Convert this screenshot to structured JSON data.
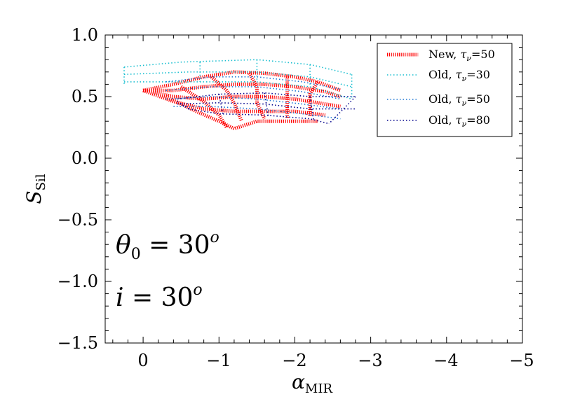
{
  "chart_data": {
    "type": "line",
    "title": "",
    "xlabel": "α_MIR",
    "xlabel_parts": {
      "symbol": "α",
      "sub": "MIR"
    },
    "ylabel": "S_Sil",
    "ylabel_parts": {
      "symbol": "S",
      "sub": "Sil"
    },
    "xlim": [
      0.5,
      -5
    ],
    "ylim": [
      -1.5,
      1.0
    ],
    "xticks": [
      0,
      -1,
      -2,
      -3,
      -4,
      -5
    ],
    "xtick_labels": [
      "0",
      "−1",
      "−2",
      "−3",
      "−4",
      "−5"
    ],
    "yticks": [
      1.0,
      0.5,
      0.0,
      -0.5,
      -1.0,
      -1.5
    ],
    "ytick_labels": [
      "1.0",
      "0.5",
      "0.0",
      "−0.5",
      "−1.0",
      "−1.5"
    ],
    "grid": false,
    "legend_position": "top-right",
    "annotations": [
      {
        "text": "θ₀ = 30ᵒ",
        "lhs": "θ",
        "sub": "0",
        "rhs": " = 30",
        "sup": "o",
        "x": -0.3,
        "y": -0.72
      },
      {
        "text": "i = 30ᵒ",
        "lhs": "i",
        "sub": "",
        "rhs": " = 30",
        "sup": "o",
        "x": -0.3,
        "y": -1.12
      }
    ],
    "series": [
      {
        "name": "New, τν=50",
        "label_prefix": "New, ",
        "label_symbol": "τ",
        "label_sub": "ν",
        "label_suffix": "=50",
        "color": "#ff0000",
        "style": "dotted-thick",
        "curves": [
          [
            [
              0.0,
              0.55
            ],
            [
              -0.4,
              0.6
            ],
            [
              -0.8,
              0.66
            ],
            [
              -1.2,
              0.7
            ],
            [
              -1.6,
              0.69
            ],
            [
              -2.0,
              0.66
            ],
            [
              -2.3,
              0.62
            ],
            [
              -2.6,
              0.55
            ]
          ],
          [
            [
              0.0,
              0.55
            ],
            [
              -0.4,
              0.55
            ],
            [
              -0.8,
              0.58
            ],
            [
              -1.2,
              0.6
            ],
            [
              -1.6,
              0.6
            ],
            [
              -2.0,
              0.58
            ],
            [
              -2.4,
              0.54
            ],
            [
              -2.6,
              0.5
            ]
          ],
          [
            [
              0.0,
              0.55
            ],
            [
              -0.4,
              0.5
            ],
            [
              -0.8,
              0.48
            ],
            [
              -1.2,
              0.5
            ],
            [
              -1.6,
              0.5
            ],
            [
              -2.0,
              0.48
            ],
            [
              -2.4,
              0.44
            ],
            [
              -2.6,
              0.42
            ]
          ],
          [
            [
              0.0,
              0.55
            ],
            [
              -0.4,
              0.46
            ],
            [
              -0.8,
              0.4
            ],
            [
              -1.2,
              0.38
            ],
            [
              -1.6,
              0.38
            ],
            [
              -2.0,
              0.38
            ],
            [
              -2.4,
              0.35
            ]
          ],
          [
            [
              -0.3,
              0.5
            ],
            [
              -0.7,
              0.38
            ],
            [
              -1.0,
              0.3
            ],
            [
              -1.2,
              0.24
            ],
            [
              -1.5,
              0.3
            ],
            [
              -1.9,
              0.3
            ],
            [
              -2.3,
              0.3
            ]
          ],
          [
            [
              -0.5,
              0.58
            ],
            [
              -0.8,
              0.46
            ],
            [
              -1.0,
              0.35
            ],
            [
              -1.1,
              0.25
            ]
          ],
          [
            [
              -0.9,
              0.66
            ],
            [
              -1.1,
              0.55
            ],
            [
              -1.2,
              0.45
            ],
            [
              -1.3,
              0.3
            ]
          ],
          [
            [
              -1.4,
              0.69
            ],
            [
              -1.5,
              0.58
            ],
            [
              -1.5,
              0.45
            ],
            [
              -1.6,
              0.32
            ]
          ],
          [
            [
              -1.9,
              0.67
            ],
            [
              -1.9,
              0.57
            ],
            [
              -1.9,
              0.45
            ],
            [
              -1.9,
              0.32
            ]
          ],
          [
            [
              -2.3,
              0.62
            ],
            [
              -2.2,
              0.52
            ],
            [
              -2.2,
              0.42
            ],
            [
              -2.2,
              0.34
            ]
          ]
        ]
      },
      {
        "name": "Old, τν=30",
        "label_prefix": "Old, ",
        "label_symbol": "τ",
        "label_sub": "ν",
        "label_suffix": "=30",
        "color": "#17becf",
        "style": "dotted",
        "curves": [
          [
            [
              0.25,
              0.74
            ],
            [
              -0.5,
              0.78
            ],
            [
              -1.5,
              0.8
            ],
            [
              -2.2,
              0.76
            ],
            [
              -2.75,
              0.68
            ]
          ],
          [
            [
              0.25,
              0.68
            ],
            [
              -0.6,
              0.7
            ],
            [
              -1.5,
              0.7
            ],
            [
              -2.2,
              0.66
            ],
            [
              -2.75,
              0.58
            ]
          ],
          [
            [
              0.25,
              0.62
            ],
            [
              -0.6,
              0.62
            ],
            [
              -1.5,
              0.62
            ],
            [
              -2.2,
              0.58
            ],
            [
              -2.75,
              0.48
            ]
          ],
          [
            [
              0.25,
              0.74
            ],
            [
              0.25,
              0.6
            ]
          ],
          [
            [
              -0.75,
              0.78
            ],
            [
              -0.75,
              0.62
            ]
          ],
          [
            [
              -1.5,
              0.8
            ],
            [
              -1.5,
              0.62
            ]
          ],
          [
            [
              -2.2,
              0.76
            ],
            [
              -2.2,
              0.58
            ]
          ],
          [
            [
              -2.75,
              0.68
            ],
            [
              -2.75,
              0.48
            ]
          ]
        ]
      },
      {
        "name": "Old, τν=50",
        "label_prefix": "Old, ",
        "label_symbol": "τ",
        "label_sub": "ν",
        "label_suffix": "=50",
        "color": "#1f77d4",
        "style": "dotted",
        "curves": [
          [
            [
              -0.3,
              0.62
            ],
            [
              -0.9,
              0.66
            ],
            [
              -1.5,
              0.66
            ],
            [
              -2.1,
              0.62
            ],
            [
              -2.6,
              0.56
            ]
          ],
          [
            [
              -0.3,
              0.55
            ],
            [
              -0.9,
              0.58
            ],
            [
              -1.5,
              0.58
            ],
            [
              -2.1,
              0.54
            ],
            [
              -2.6,
              0.48
            ]
          ],
          [
            [
              -0.3,
              0.48
            ],
            [
              -0.9,
              0.5
            ],
            [
              -1.5,
              0.48
            ],
            [
              -2.1,
              0.44
            ],
            [
              -2.6,
              0.4
            ]
          ],
          [
            [
              -0.4,
              0.42
            ],
            [
              -0.9,
              0.42
            ],
            [
              -1.5,
              0.4
            ],
            [
              -2.1,
              0.36
            ],
            [
              -2.6,
              0.32
            ]
          ]
        ]
      },
      {
        "name": "Old, τν=80",
        "label_prefix": "Old, ",
        "label_symbol": "τ",
        "label_sub": "ν",
        "label_suffix": "=80",
        "color": "#00008b",
        "style": "dotted",
        "curves": [
          [
            [
              -0.45,
              0.48
            ],
            [
              -1.0,
              0.52
            ],
            [
              -1.6,
              0.53
            ],
            [
              -2.2,
              0.5
            ],
            [
              -2.8,
              0.5
            ]
          ],
          [
            [
              -0.45,
              0.44
            ],
            [
              -1.0,
              0.45
            ],
            [
              -1.6,
              0.44
            ],
            [
              -2.2,
              0.4
            ],
            [
              -2.8,
              0.4
            ]
          ],
          [
            [
              -0.6,
              0.4
            ],
            [
              -1.0,
              0.36
            ],
            [
              -1.6,
              0.35
            ],
            [
              -2.2,
              0.32
            ],
            [
              -2.45,
              0.28
            ]
          ],
          [
            [
              -0.45,
              0.46
            ],
            [
              -0.6,
              0.4
            ]
          ],
          [
            [
              -1.0,
              0.52
            ],
            [
              -1.05,
              0.36
            ]
          ],
          [
            [
              -1.6,
              0.53
            ],
            [
              -1.65,
              0.34
            ]
          ],
          [
            [
              -2.2,
              0.5
            ],
            [
              -2.25,
              0.3
            ]
          ],
          [
            [
              -2.8,
              0.5
            ],
            [
              -2.45,
              0.28
            ]
          ]
        ]
      }
    ]
  }
}
